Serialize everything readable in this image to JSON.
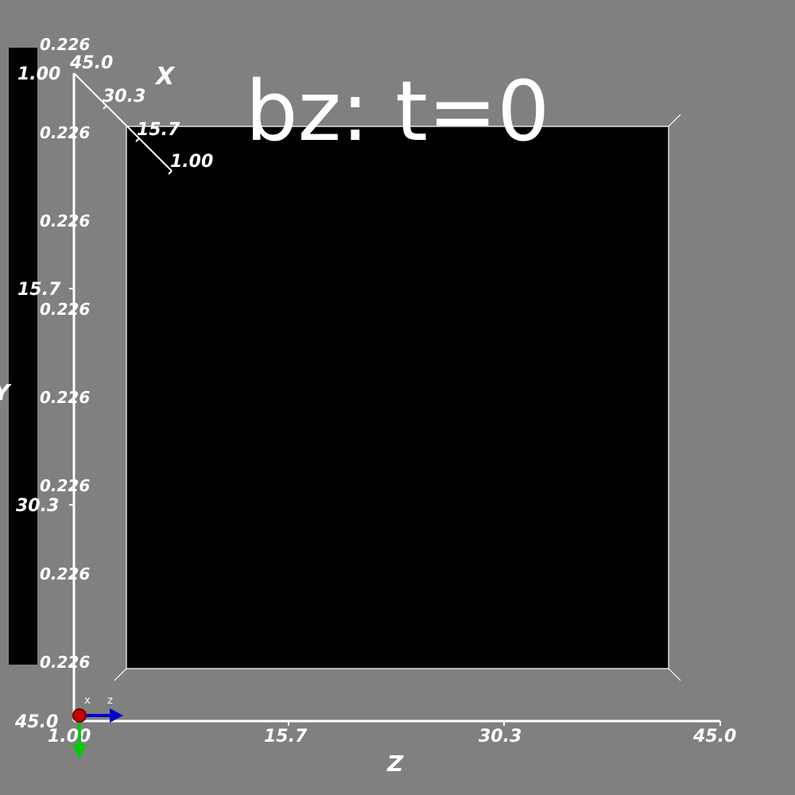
{
  "title": "bz: t=0",
  "colorbar": {
    "color": "#000000",
    "labels": [
      "0.226",
      "0.226",
      "0.226",
      "0.226",
      "0.226",
      "0.226",
      "0.226",
      "0.226"
    ]
  },
  "axes": {
    "z": {
      "name": "Z",
      "ticks": [
        "1.00",
        "15.7",
        "30.3",
        "45.0"
      ]
    },
    "y": {
      "name": "Y",
      "ticks": [
        "1.00",
        "15.7",
        "30.3",
        "45.0"
      ]
    },
    "x": {
      "name": "X",
      "ticks": [
        "45.0",
        "30.3",
        "15.7",
        "1.00"
      ]
    }
  },
  "orientation_widget": {
    "x_label": "x",
    "z_label": "z",
    "x_color": "#cc0000",
    "y_color": "#00cc00",
    "z_color": "#0000cc"
  },
  "volume_color": "#000000",
  "background_color": "#808080"
}
